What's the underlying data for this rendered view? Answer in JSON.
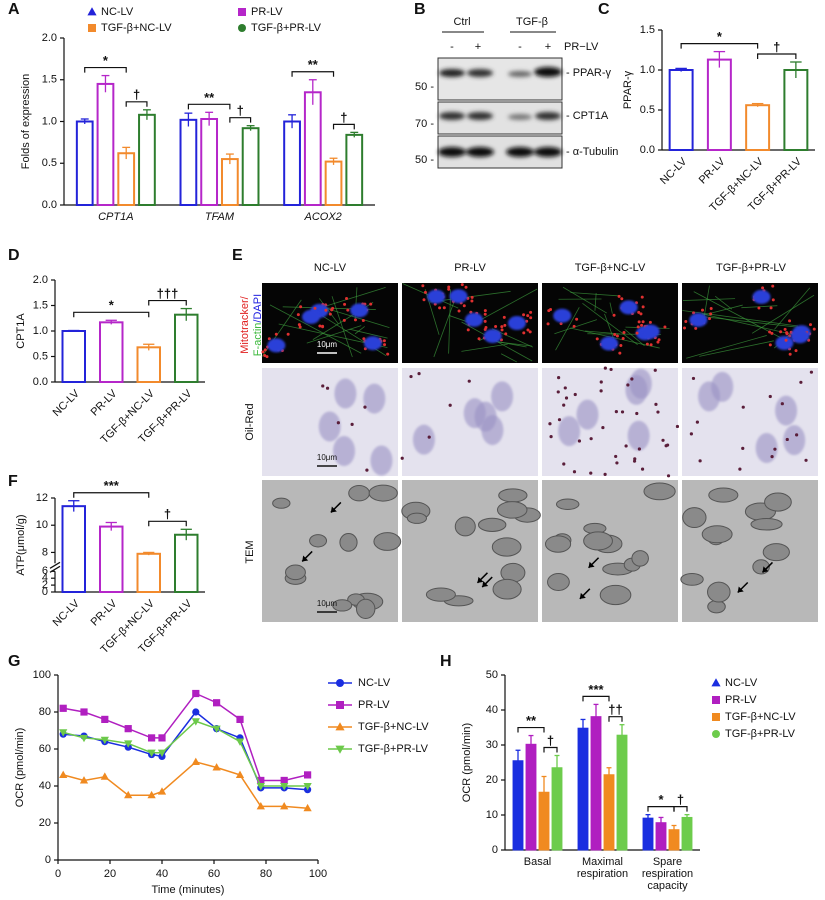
{
  "chart_data": [
    {
      "type": "bar",
      "panel": "A",
      "ylabel": "Folds of expression",
      "categories": [
        "CPT1A",
        "TFAM",
        "ACOX2"
      ],
      "italic_categories": true,
      "bar_style": "outline",
      "legend": "top",
      "series": [
        {
          "name": "NC-LV",
          "color": "#2323d9",
          "marker": "triangle",
          "values": [
            1.0,
            1.02,
            1.0
          ],
          "errors": [
            0.03,
            0.08,
            0.08
          ]
        },
        {
          "name": "PR-LV",
          "color": "#b526c9",
          "marker": "square",
          "values": [
            1.45,
            1.03,
            1.35
          ],
          "errors": [
            0.1,
            0.08,
            0.15
          ]
        },
        {
          "name": "TGF-β+NC-LV",
          "color": "#f28a2c",
          "marker": "square",
          "values": [
            0.62,
            0.55,
            0.52
          ],
          "errors": [
            0.07,
            0.06,
            0.04
          ]
        },
        {
          "name": "TGF-β+PR-LV",
          "color": "#2e7d2e",
          "marker": "circle",
          "values": [
            1.08,
            0.92,
            0.84
          ],
          "errors": [
            0.06,
            0.03,
            0.03
          ]
        }
      ],
      "ylim": [
        0,
        2
      ],
      "yticks": [
        {
          "value": 0,
          "label": "0.0"
        },
        0.5,
        {
          "value": 1,
          "label": "1.0"
        },
        1.5,
        {
          "value": 2,
          "label": "2.0"
        }
      ],
      "annotations": [
        {
          "label": "*",
          "category": 0,
          "pair": [
            0,
            2
          ]
        },
        {
          "label": "†",
          "category": 0,
          "pair": [
            2,
            3
          ]
        },
        {
          "label": "**",
          "category": 1,
          "pair": [
            0,
            2
          ]
        },
        {
          "label": "†",
          "category": 1,
          "pair": [
            2,
            3
          ]
        },
        {
          "label": "**",
          "category": 2,
          "pair": [
            0,
            2
          ]
        },
        {
          "label": "†",
          "category": 2,
          "pair": [
            2,
            3
          ]
        }
      ]
    },
    {
      "type": "bar",
      "panel": "C",
      "ylabel": "PPAR-γ",
      "categories": [
        "NC-LV",
        "PR-LV",
        "TGF-β+NC-LV",
        "TGF-β+PR-LV"
      ],
      "colors": [
        "#2323d9",
        "#b526c9",
        "#f28a2c",
        "#2e7d2e"
      ],
      "values": [
        1.0,
        1.13,
        0.56,
        1.0
      ],
      "errors": [
        0.02,
        0.1,
        0.02,
        0.1
      ],
      "bar_style": "outline",
      "xtick_rotation": -45,
      "ylim": [
        0,
        1.5
      ],
      "yticks": [
        {
          "value": 0,
          "label": "0.0"
        },
        0.5,
        {
          "value": 1,
          "label": "1.0"
        },
        1.5
      ],
      "annotations": [
        {
          "label": "*",
          "pair": [
            0,
            2
          ]
        },
        {
          "label": "†",
          "pair": [
            2,
            3
          ]
        }
      ]
    },
    {
      "type": "bar",
      "panel": "D",
      "ylabel": "CPT1A",
      "categories": [
        "NC-LV",
        "PR-LV",
        "TGF-β+NC-LV",
        "TGF-β+PR-LV"
      ],
      "colors": [
        "#2323d9",
        "#b526c9",
        "#f28a2c",
        "#2e7d2e"
      ],
      "values": [
        1.0,
        1.17,
        0.68,
        1.32
      ],
      "errors": [
        0.01,
        0.04,
        0.06,
        0.12
      ],
      "bar_style": "outline",
      "xtick_rotation": -45,
      "ylim": [
        0,
        2
      ],
      "yticks": [
        {
          "value": 0,
          "label": "0.0"
        },
        0.5,
        {
          "value": 1,
          "label": "1.0"
        },
        1.5,
        {
          "value": 2,
          "label": "2.0"
        }
      ],
      "annotations": [
        {
          "label": "*",
          "pair": [
            0,
            2
          ]
        },
        {
          "label": "†††",
          "pair": [
            2,
            3
          ]
        }
      ]
    },
    {
      "type": "bar",
      "panel": "F",
      "ylabel": "ATP(μmol/g)",
      "categories": [
        "NC-LV",
        "PR-LV",
        "TGF-β+NC-LV",
        "TGF-β+PR-LV"
      ],
      "colors": [
        "#2323d9",
        "#b526c9",
        "#f28a2c",
        "#2e7d2e"
      ],
      "values": [
        11.4,
        9.9,
        7.9,
        9.3
      ],
      "errors": [
        0.4,
        0.3,
        0.1,
        0.4
      ],
      "bar_style": "outline",
      "xtick_rotation": -45,
      "ylim": [
        0,
        12
      ],
      "axis_break": [
        6,
        7.2
      ],
      "yticks": [
        0,
        2,
        4,
        6,
        8,
        10,
        12
      ],
      "annotations": [
        {
          "label": "***",
          "pair": [
            0,
            2
          ]
        },
        {
          "label": "†",
          "pair": [
            2,
            3
          ]
        }
      ]
    },
    {
      "type": "line",
      "panel": "G",
      "xlabel": "Time (minutes)",
      "ylabel": "OCR (pmol/min)",
      "legend": "right",
      "x": [
        2,
        10,
        18,
        27,
        36,
        40,
        53,
        61,
        70,
        78,
        87,
        96
      ],
      "series": [
        {
          "name": "NC-LV",
          "color": "#1a2ee0",
          "marker": "circle",
          "values": [
            68,
            67,
            64,
            61,
            57,
            56,
            80,
            71,
            66,
            39,
            39,
            38
          ]
        },
        {
          "name": "PR-LV",
          "color": "#b01fc0",
          "marker": "square",
          "values": [
            82,
            80,
            76,
            71,
            66,
            66,
            90,
            85,
            76,
            43,
            43,
            46
          ]
        },
        {
          "name": "TGF-β+NC-LV",
          "color": "#f08a20",
          "marker": "triangle",
          "values": [
            46,
            43,
            45,
            35,
            35,
            37,
            53,
            50,
            46,
            29,
            29,
            28
          ]
        },
        {
          "name": "TGF-β+PR-LV",
          "color": "#6cc94a",
          "marker": "triangle-down",
          "values": [
            69,
            66,
            65,
            63,
            58,
            58,
            75,
            71,
            64,
            40,
            40,
            40
          ]
        }
      ],
      "xlim": [
        0,
        100
      ],
      "xticks": [
        0,
        20,
        40,
        60,
        80,
        100
      ],
      "ylim": [
        0,
        100
      ],
      "yticks": [
        0,
        20,
        40,
        60,
        80,
        100
      ]
    },
    {
      "type": "bar",
      "panel": "H",
      "ylabel": "OCR (pmol/min)",
      "bar_style": "filled",
      "legend": "right",
      "categories": [
        "Basal",
        "Maximal respiration",
        "Spare respiration capacity"
      ],
      "series": [
        {
          "name": "NC-LV",
          "color": "#1a2ee0",
          "marker": "triangle",
          "values": [
            25.5,
            34.8,
            9.1
          ],
          "errors": [
            3,
            2.5,
            1
          ]
        },
        {
          "name": "PR-LV",
          "color": "#b01fc0",
          "marker": "square",
          "values": [
            30.2,
            38.1,
            7.8
          ],
          "errors": [
            2.5,
            3.5,
            1.5
          ]
        },
        {
          "name": "TGF-β+NC-LV",
          "color": "#f08a20",
          "marker": "square",
          "values": [
            16.5,
            21.5,
            5.8
          ],
          "errors": [
            4.5,
            2,
            1.2
          ]
        },
        {
          "name": "TGF-β+PR-LV",
          "color": "#6dcc4c",
          "marker": "circle",
          "values": [
            23.5,
            32.8,
            9.3
          ],
          "errors": [
            3.5,
            3,
            0.8
          ]
        }
      ],
      "ylim": [
        0,
        50
      ],
      "yticks": [
        0,
        10,
        20,
        30,
        40,
        50
      ],
      "annotations": [
        {
          "label": "**",
          "category": 0,
          "pair": [
            0,
            2
          ]
        },
        {
          "label": "†",
          "category": 0,
          "pair": [
            2,
            3
          ]
        },
        {
          "label": "***",
          "category": 1,
          "pair": [
            0,
            2
          ]
        },
        {
          "label": "††",
          "category": 1,
          "pair": [
            2,
            3
          ]
        },
        {
          "label": "*",
          "category": 2,
          "pair": [
            0,
            2
          ]
        },
        {
          "label": "†",
          "category": 2,
          "pair": [
            2,
            3
          ]
        }
      ]
    }
  ],
  "blot": {
    "panel": "B",
    "groups": [
      "Ctrl",
      "TGF-β"
    ],
    "treatment": "PR−LV",
    "signs": [
      "-",
      "+",
      "-",
      "+"
    ],
    "bands": [
      "- PPAR-γ",
      "- CPT1A",
      "- α-Tubulin"
    ],
    "markers": [
      "50 -",
      "70 -",
      "50 -"
    ]
  },
  "micrographs": {
    "panel": "E",
    "columns": [
      "NC-LV",
      "PR-LV",
      "TGF-β+NC-LV",
      "TGF-β+PR-LV"
    ],
    "rows": [
      {
        "label_lines": [
          [
            {
              "text": "Mitotracker/",
              "color": "#e02020"
            }
          ],
          [
            {
              "text": "F-actin",
              "color": "#3cb83c"
            },
            {
              "text": "/DAPI",
              "color": "#2020e0"
            }
          ]
        ]
      },
      {
        "label": "Oil-Red"
      },
      {
        "label": "TEM"
      }
    ],
    "scale_bar": "10μm"
  }
}
